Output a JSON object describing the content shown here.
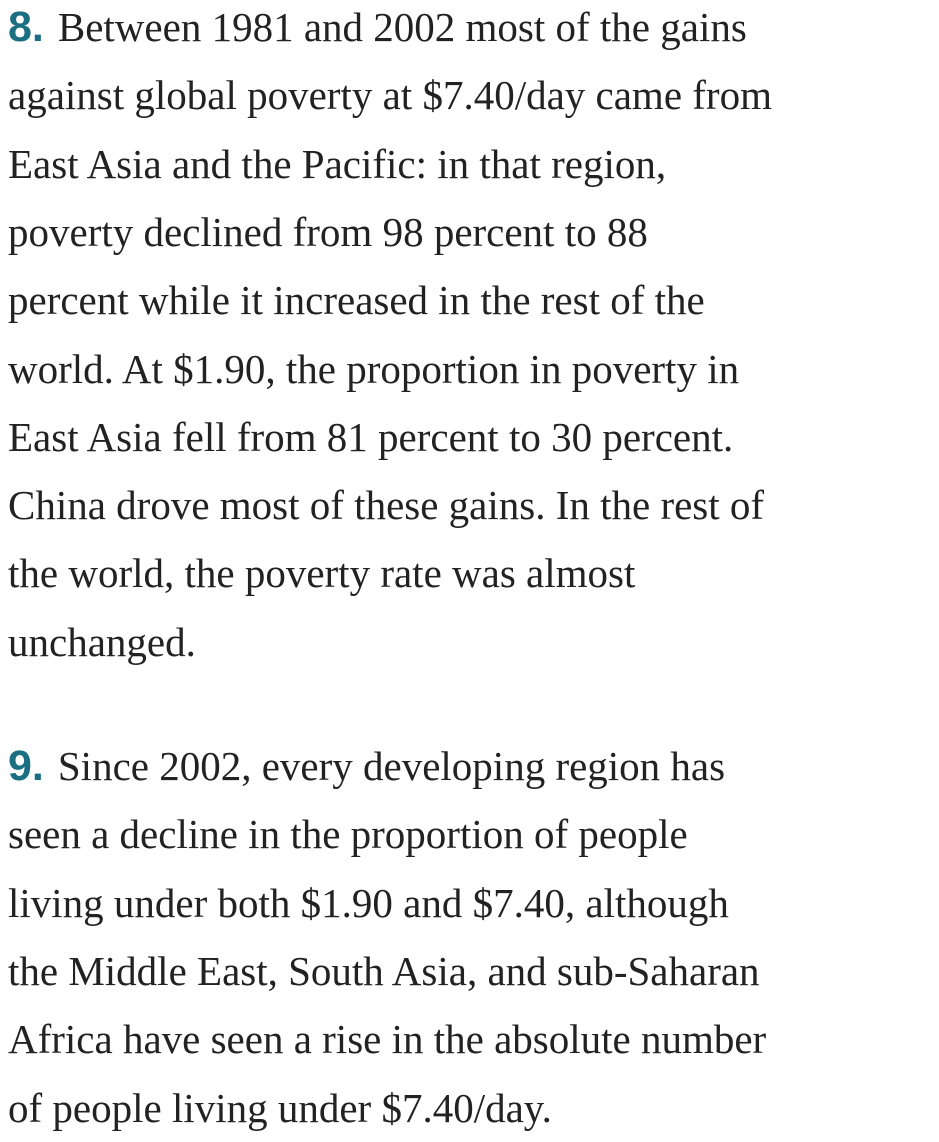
{
  "items": [
    {
      "number": "8.",
      "lines": [
        "Between 1981 and 2002 most of the gains",
        "against global poverty at $7.40/day came from",
        "East Asia and the Pacific: in that region,",
        "poverty declined from 98 percent to 88",
        "percent while it increased in the rest of the",
        "world. At $1.90, the proportion in poverty in",
        "East Asia fell from 81 percent to 30 percent.",
        "China drove most of these gains. In the rest of",
        "the world, the poverty rate was almost",
        "unchanged."
      ]
    },
    {
      "number": "9.",
      "lines": [
        "Since 2002, every developing region has",
        "seen a decline in the proportion of people",
        "living under both $1.90 and $7.40, although",
        "the Middle East, South Asia, and sub-Saharan",
        "Africa have seen a rise in the absolute number",
        "of people living under $7.40/day."
      ]
    }
  ]
}
